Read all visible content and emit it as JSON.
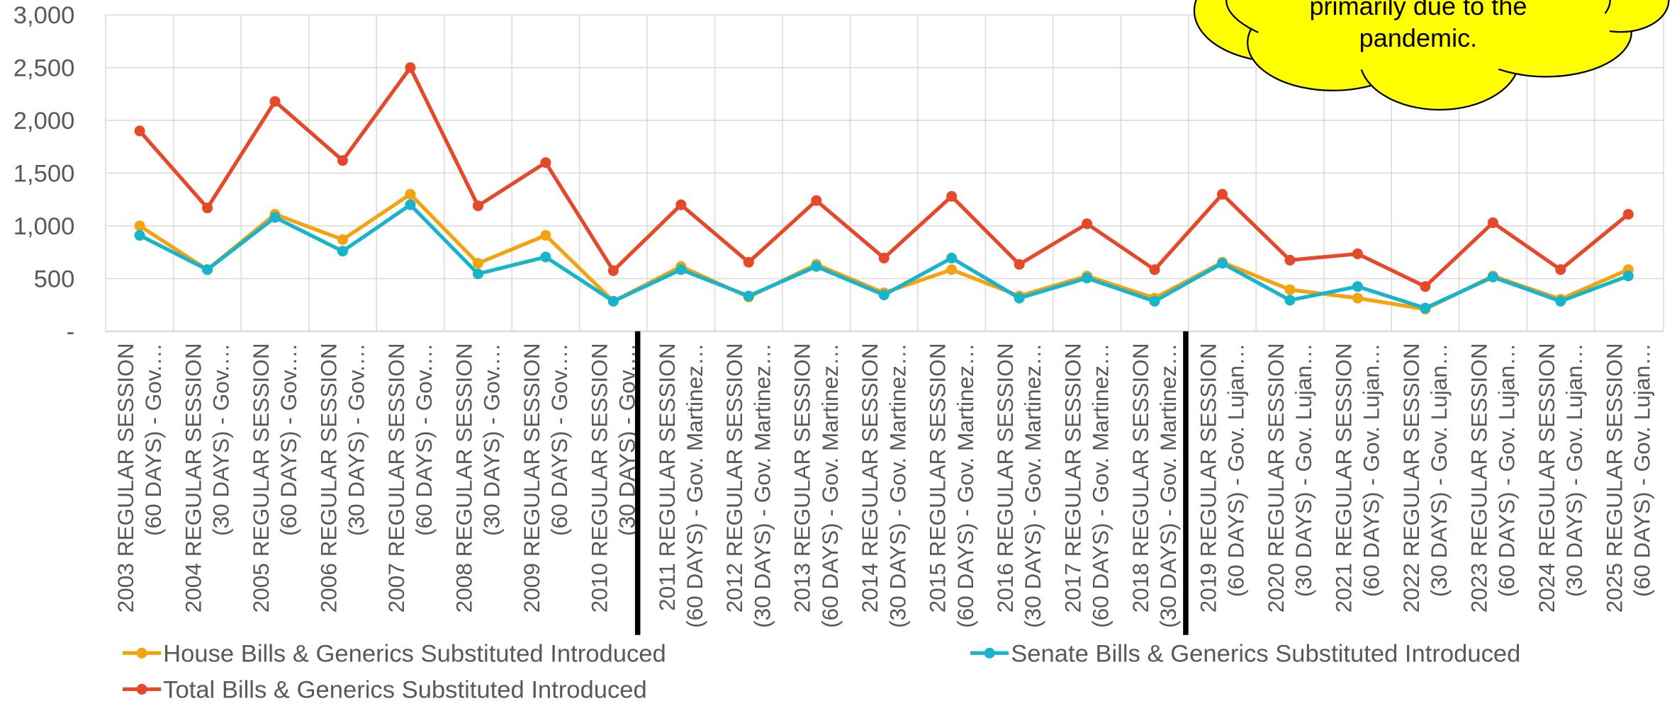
{
  "chart_data": {
    "type": "line",
    "categories": [
      [
        "2003 REGULAR SESSION",
        "(60 DAYS) - Gov.…"
      ],
      [
        "2004 REGULAR SESSION",
        "(30 DAYS) - Gov.…"
      ],
      [
        "2005 REGULAR SESSION",
        "(60 DAYS) - Gov.…"
      ],
      [
        "2006 REGULAR SESSION",
        "(30 DAYS) - Gov.…"
      ],
      [
        "2007 REGULAR SESSION",
        "(60 DAYS) - Gov.…"
      ],
      [
        "2008 REGULAR SESSION",
        "(30 DAYS) - Gov.…"
      ],
      [
        "2009 REGULAR SESSION",
        "(60 DAYS) - Gov.…"
      ],
      [
        "2010 REGULAR SESSION",
        "(30 DAYS) - Gov.…"
      ],
      [
        "2011 REGULAR SESSION",
        "(60 DAYS) - Gov. Martinez…"
      ],
      [
        "2012 REGULAR SESSION",
        "(30 DAYS) - Gov. Martinez…"
      ],
      [
        "2013 REGULAR SESSION",
        "(60 DAYS) - Gov. Martinez…"
      ],
      [
        "2014 REGULAR SESSION",
        "(30 DAYS) - Gov. Martinez…"
      ],
      [
        "2015 REGULAR SESSION",
        "(60 DAYS) - Gov. Martinez…"
      ],
      [
        "2016 REGULAR SESSION",
        "(30 DAYS) - Gov. Martinez…"
      ],
      [
        "2017 REGULAR SESSION",
        "(60 DAYS) - Gov. Martinez…"
      ],
      [
        "2018 REGULAR SESSION",
        "(30 DAYS) - Gov. Martinez…"
      ],
      [
        "2019 REGULAR SESSION",
        "(60 DAYS) - Gov. Lujan…"
      ],
      [
        "2020 REGULAR SESSION",
        "(30 DAYS) - Gov. Lujan…"
      ],
      [
        "2021 REGULAR SESSION",
        "(60 DAYS) - Gov. Lujan…"
      ],
      [
        "2022 REGULAR SESSION",
        "(30 DAYS) - Gov. Lujan…"
      ],
      [
        "2023 REGULAR SESSION",
        "(60 DAYS) - Gov. Lujan…"
      ],
      [
        "2024 REGULAR SESSION",
        "(30 DAYS) - Gov. Lujan…"
      ],
      [
        "2025 REGULAR SESSION",
        "(60 DAYS) - Gov. Lujan…"
      ]
    ],
    "series": [
      {
        "name": "House Bills & Generics Substituted Introduced",
        "color": "#f2a30f",
        "values": [
          1000,
          585,
          1110,
          870,
          1300,
          645,
          910,
          285,
          615,
          325,
          635,
          365,
          585,
          335,
          525,
          315,
          655,
          395,
          315,
          210,
          525,
          305,
          585
        ]
      },
      {
        "name": "Senate Bills & Generics Substituted Introduced",
        "color": "#17b4cb",
        "values": [
          910,
          585,
          1080,
          760,
          1200,
          545,
          705,
          285,
          585,
          335,
          615,
          345,
          695,
          315,
          505,
          285,
          645,
          295,
          425,
          220,
          515,
          285,
          525
        ]
      },
      {
        "name": "Total Bills & Generics Substituted Introduced",
        "color": "#e6482a",
        "values": [
          1900,
          1170,
          2180,
          1620,
          2500,
          1190,
          1600,
          575,
          1200,
          655,
          1240,
          695,
          1280,
          635,
          1020,
          585,
          1300,
          675,
          735,
          425,
          1030,
          585,
          1110
        ]
      }
    ],
    "ylim": [
      0,
      3000
    ],
    "yticks": [
      {
        "value": 0,
        "label": "-"
      },
      500,
      {
        "value": 1000,
        "label": "1,000"
      },
      {
        "value": 1500,
        "label": "1,500"
      },
      {
        "value": 2000,
        "label": "2,000"
      },
      {
        "value": 2500,
        "label": "2,500"
      },
      {
        "value": 3000,
        "label": "3,000"
      }
    ],
    "grid": true,
    "annotation": "primarily due to the pandemic."
  }
}
